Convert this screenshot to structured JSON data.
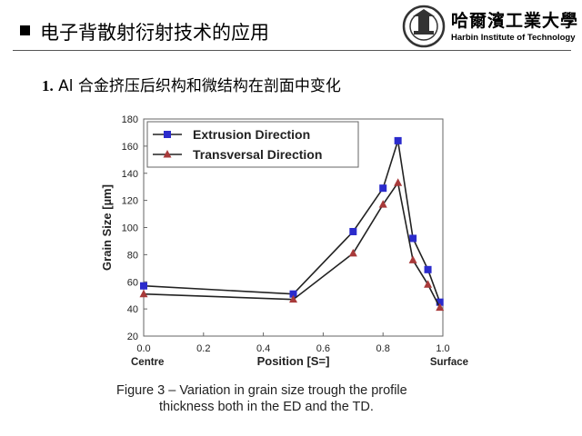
{
  "header": {
    "title": "电子背散射衍射技术的应用",
    "logo_cn": "哈爾濱工業大學",
    "logo_en": "Harbin Institute of Technology"
  },
  "subtitle": {
    "number": "1.",
    "text": "Al 合金挤压后织构和微结构在剖面中变化"
  },
  "caption": {
    "line1": "Figure 3 – Variation in grain size trough the profile",
    "line2": "thickness both in the ED and the TD."
  },
  "chart_data": {
    "type": "line",
    "xlabel": "Position [S=]",
    "ylabel": "Grain Size [µm]",
    "xlim": [
      0,
      1.0
    ],
    "ylim": [
      20,
      180
    ],
    "xticks": [
      "0.0",
      "0.2",
      "0.4",
      "0.6",
      "0.8",
      "1.0"
    ],
    "yticks": [
      "20",
      "40",
      "60",
      "80",
      "100",
      "120",
      "140",
      "160",
      "180"
    ],
    "x_end_labels": {
      "left": "Centre",
      "right": "Surface"
    },
    "legend_position": "top-left",
    "grid": false,
    "series": [
      {
        "name": "Extrusion Direction",
        "marker": "square",
        "color": "#2b2bcc",
        "x": [
          0.0,
          0.5,
          0.7,
          0.8,
          0.85,
          0.9,
          0.95,
          0.99
        ],
        "y": [
          57,
          51,
          97,
          129,
          164,
          92,
          69,
          45
        ]
      },
      {
        "name": "Transversal Direction",
        "marker": "triangle",
        "color": "#a83a3a",
        "x": [
          0.0,
          0.5,
          0.7,
          0.8,
          0.85,
          0.9,
          0.95,
          0.99
        ],
        "y": [
          51,
          47,
          81,
          117,
          133,
          76,
          58,
          41
        ]
      }
    ]
  }
}
